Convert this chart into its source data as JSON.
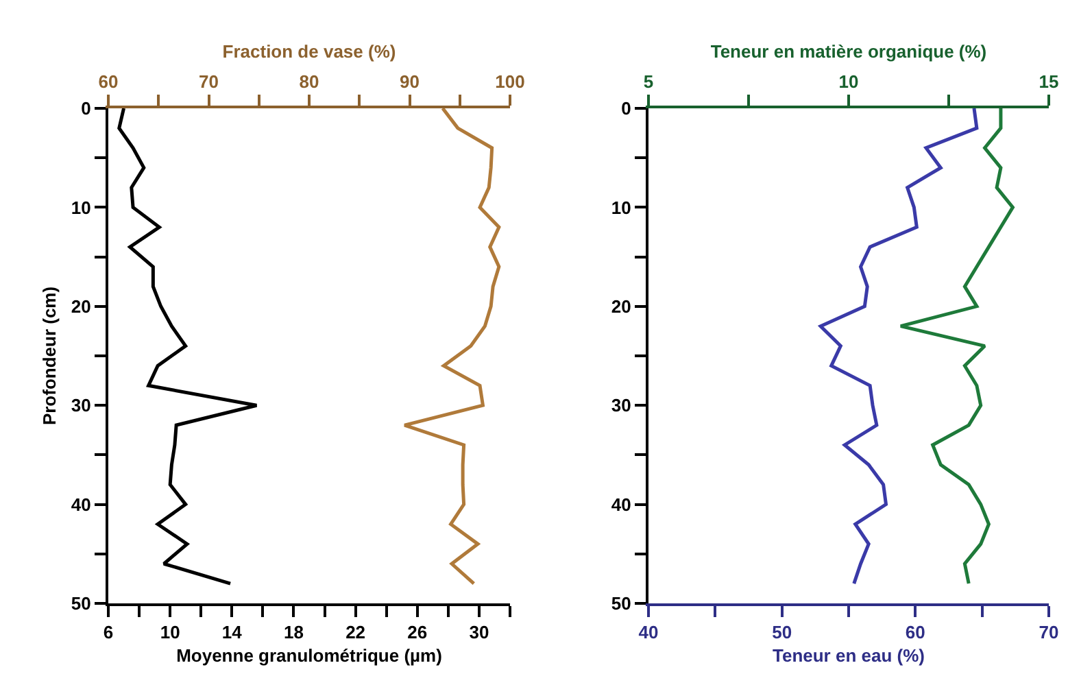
{
  "chart_data": [
    {
      "type": "line",
      "ylabel": "Profondeur (cm)",
      "xlabel": "Moyenne granulométrique (µm)",
      "x2label": "Fraction de vase (%)",
      "ylim": [
        50,
        0
      ],
      "yticks": [
        0,
        {
          "value": 5,
          "label": null
        },
        10,
        {
          "value": 15,
          "label": null
        },
        20,
        {
          "value": 25,
          "label": null
        },
        30,
        {
          "value": 35,
          "label": null
        },
        40,
        {
          "value": 45,
          "label": null
        },
        50
      ],
      "xlim": [
        6,
        32
      ],
      "xticks": [
        6,
        {
          "value": 8,
          "label": null
        },
        10,
        {
          "value": 12,
          "label": null
        },
        14,
        {
          "value": 16,
          "label": null
        },
        18,
        {
          "value": 20,
          "label": null
        },
        22,
        {
          "value": 24,
          "label": null
        },
        26,
        {
          "value": 28,
          "label": null
        },
        30,
        {
          "value": 32,
          "label": null
        }
      ],
      "x2lim": [
        60,
        100
      ],
      "x2ticks": [
        60,
        {
          "value": 65,
          "label": null
        },
        70,
        {
          "value": 75,
          "label": null
        },
        80,
        {
          "value": 85,
          "label": null
        },
        90,
        {
          "value": 95,
          "label": null
        },
        100
      ],
      "marker": "none",
      "line_style": "solid",
      "series": [
        {
          "color": "#000000",
          "x": [
            7.0,
            6.7,
            7.6,
            8.3,
            7.5,
            7.6,
            9.3,
            7.4,
            8.9,
            8.9,
            9.4,
            10.1,
            11.0,
            9.2,
            8.6,
            15.6,
            10.4,
            10.3,
            10.1,
            10.0,
            11.0,
            9.2,
            11.1,
            9.6,
            13.9
          ],
          "values": [
            0,
            2,
            4,
            6,
            8,
            10,
            12,
            14,
            16,
            18,
            20,
            22,
            24,
            26,
            28,
            30,
            32,
            34,
            36,
            38,
            40,
            42,
            44,
            46,
            48
          ]
        },
        {
          "color": "#b07a3a",
          "axis": "x2",
          "x": [
            93.3,
            94.8,
            98.2,
            98.1,
            97.9,
            97.0,
            98.9,
            98.0,
            98.9,
            98.3,
            98.1,
            97.5,
            96.1,
            93.4,
            97.0,
            97.3,
            89.5,
            95.4,
            95.3,
            95.3,
            95.4,
            94.1,
            96.8,
            94.2,
            96.4
          ],
          "values": [
            0,
            2,
            4,
            6,
            8,
            10,
            12,
            14,
            16,
            18,
            20,
            22,
            24,
            26,
            28,
            30,
            32,
            34,
            36,
            38,
            40,
            42,
            44,
            46,
            48
          ]
        }
      ]
    },
    {
      "type": "line",
      "xlabel": "Teneur en eau (%)",
      "x2label": "Teneur en matière organique (%)",
      "ylim": [
        50,
        0
      ],
      "yticks": [
        0,
        {
          "value": 5,
          "label": null
        },
        10,
        {
          "value": 15,
          "label": null
        },
        20,
        {
          "value": 25,
          "label": null
        },
        30,
        {
          "value": 35,
          "label": null
        },
        40,
        {
          "value": 45,
          "label": null
        },
        50
      ],
      "xlim": [
        40,
        70
      ],
      "xticks": [
        40,
        {
          "value": 45,
          "label": null
        },
        50,
        {
          "value": 55,
          "label": null
        },
        60,
        {
          "value": 65,
          "label": null
        },
        70
      ],
      "x2lim": [
        5,
        15
      ],
      "x2ticks": [
        5,
        {
          "value": 7.5,
          "label": null
        },
        10,
        {
          "value": 12.5,
          "label": null
        },
        15
      ],
      "marker": "none",
      "line_style": "solid",
      "series": [
        {
          "color": "#3a3aa8",
          "x": [
            64.4,
            64.6,
            60.8,
            61.9,
            59.4,
            59.9,
            60.1,
            56.6,
            55.9,
            56.4,
            56.2,
            52.9,
            54.4,
            53.7,
            56.6,
            56.8,
            57.1,
            54.7,
            56.5,
            57.6,
            57.8,
            55.5,
            56.5,
            55.9,
            55.4
          ],
          "values": [
            0,
            2,
            4,
            6,
            8,
            10,
            12,
            14,
            16,
            18,
            20,
            22,
            24,
            26,
            28,
            30,
            32,
            34,
            36,
            38,
            40,
            42,
            44,
            46,
            48
          ]
        },
        {
          "color": "#1e7a3a",
          "axis": "x2",
          "x": [
            13.8,
            13.8,
            13.4,
            13.8,
            13.7,
            14.1,
            13.8,
            13.5,
            13.2,
            12.9,
            13.2,
            11.3,
            13.4,
            12.9,
            13.2,
            13.3,
            13.0,
            12.1,
            12.3,
            13.0,
            13.3,
            13.5,
            13.3,
            12.9,
            13.0
          ],
          "values": [
            0,
            2,
            4,
            6,
            8,
            10,
            12,
            14,
            16,
            18,
            20,
            22,
            24,
            26,
            28,
            30,
            32,
            34,
            36,
            38,
            40,
            42,
            44,
            46,
            48
          ]
        }
      ]
    }
  ]
}
